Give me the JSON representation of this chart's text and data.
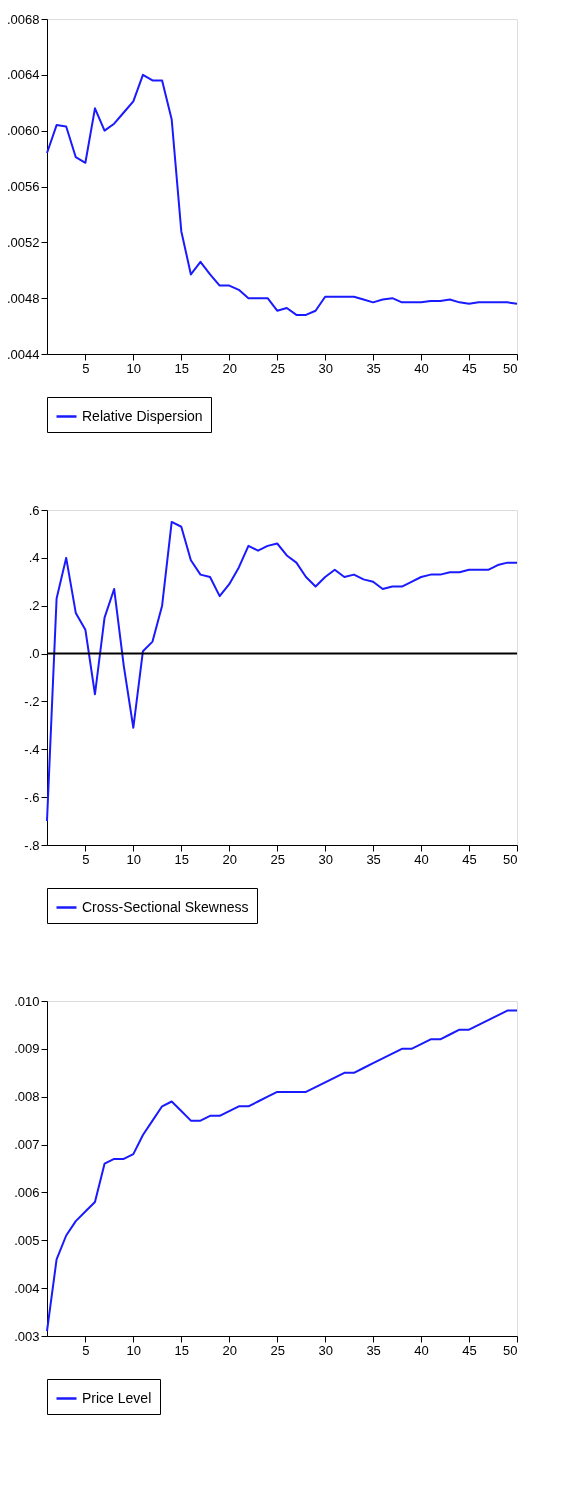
{
  "chart_data": [
    {
      "type": "line",
      "x": [
        1,
        2,
        3,
        4,
        5,
        6,
        7,
        8,
        9,
        10,
        11,
        12,
        13,
        14,
        15,
        16,
        17,
        18,
        19,
        20,
        21,
        22,
        23,
        24,
        25,
        26,
        27,
        28,
        29,
        30,
        31,
        32,
        33,
        34,
        35,
        36,
        37,
        38,
        39,
        40,
        41,
        42,
        43,
        44,
        45,
        46,
        47,
        48,
        49,
        50
      ],
      "series": [
        {
          "name": "Relative Dispersion",
          "color": "#1a1aff",
          "values": [
            0.00584,
            0.00604,
            0.00603,
            0.00581,
            0.00577,
            0.00616,
            0.006,
            0.00605,
            0.00613,
            0.00621,
            0.0064,
            0.00636,
            0.00636,
            0.00608,
            0.00528,
            0.00497,
            0.00506,
            0.00497,
            0.00489,
            0.00489,
            0.00486,
            0.0048,
            0.0048,
            0.0048,
            0.00471,
            0.00473,
            0.00468,
            0.00468,
            0.00471,
            0.00481,
            0.00481,
            0.00481,
            0.00481,
            0.00479,
            0.00477,
            0.00479,
            0.0048,
            0.00477,
            0.00477,
            0.00477,
            0.00478,
            0.00478,
            0.00479,
            0.00477,
            0.00476,
            0.00477,
            0.00477,
            0.00477,
            0.00477,
            0.00476
          ]
        }
      ],
      "xlim": [
        1,
        50
      ],
      "xticks": [
        5,
        10,
        15,
        20,
        25,
        30,
        35,
        40,
        45,
        50
      ],
      "ylim": [
        0.0044,
        0.0068
      ],
      "yticks": [
        {
          "value": 0.0044,
          "label": ".0044"
        },
        {
          "value": 0.0048,
          "label": ".0048"
        },
        {
          "value": 0.0052,
          "label": ".0052"
        },
        {
          "value": 0.0056,
          "label": ".0056"
        },
        {
          "value": 0.006,
          "label": ".0060"
        },
        {
          "value": 0.0064,
          "label": ".0064"
        },
        {
          "value": 0.0068,
          "label": ".0068"
        }
      ],
      "grid": false,
      "legend": "bottom",
      "marker": "none",
      "line_style": "solid"
    },
    {
      "type": "line",
      "x": [
        1,
        2,
        3,
        4,
        5,
        6,
        7,
        8,
        9,
        10,
        11,
        12,
        13,
        14,
        15,
        16,
        17,
        18,
        19,
        20,
        21,
        22,
        23,
        24,
        25,
        26,
        27,
        28,
        29,
        30,
        31,
        32,
        33,
        34,
        35,
        36,
        37,
        38,
        39,
        40,
        41,
        42,
        43,
        44,
        45,
        46,
        47,
        48,
        49,
        50
      ],
      "series": [
        {
          "name": "Cross-Sectional Skewness",
          "color": "#1a1aff",
          "values": [
            -0.7,
            0.23,
            0.4,
            0.17,
            0.1,
            -0.17,
            0.15,
            0.27,
            -0.05,
            -0.31,
            0.01,
            0.05,
            0.2,
            0.55,
            0.53,
            0.39,
            0.33,
            0.32,
            0.24,
            0.29,
            0.36,
            0.45,
            0.43,
            0.45,
            0.46,
            0.41,
            0.38,
            0.32,
            0.28,
            0.32,
            0.35,
            0.32,
            0.33,
            0.31,
            0.3,
            0.27,
            0.28,
            0.28,
            0.3,
            0.32,
            0.33,
            0.33,
            0.34,
            0.34,
            0.35,
            0.35,
            0.35,
            0.37,
            0.38,
            0.38
          ]
        }
      ],
      "xlim": [
        1,
        50
      ],
      "xticks": [
        5,
        10,
        15,
        20,
        25,
        30,
        35,
        40,
        45,
        50
      ],
      "ylim": [
        -0.8,
        0.6
      ],
      "yticks": [
        {
          "value": -0.8,
          "label": "-.8"
        },
        {
          "value": -0.6,
          "label": "-.6"
        },
        {
          "value": -0.4,
          "label": "-.4"
        },
        {
          "value": -0.2,
          "label": "-.2"
        },
        {
          "value": 0,
          "label": ".0"
        },
        {
          "value": 0.2,
          "label": ".2"
        },
        {
          "value": 0.4,
          "label": ".4"
        },
        {
          "value": 0.6,
          "label": ".6"
        }
      ],
      "ref_lines": [
        {
          "axis": "y",
          "value": 0,
          "color": "#000000"
        }
      ],
      "grid": false,
      "legend": "bottom",
      "marker": "none",
      "line_style": "solid"
    },
    {
      "type": "line",
      "x": [
        1,
        2,
        3,
        4,
        5,
        6,
        7,
        8,
        9,
        10,
        11,
        12,
        13,
        14,
        15,
        16,
        17,
        18,
        19,
        20,
        21,
        22,
        23,
        24,
        25,
        26,
        27,
        28,
        29,
        30,
        31,
        32,
        33,
        34,
        35,
        36,
        37,
        38,
        39,
        40,
        41,
        42,
        43,
        44,
        45,
        46,
        47,
        48,
        49,
        50
      ],
      "series": [
        {
          "name": "Price Level",
          "color": "#1a1aff",
          "values": [
            0.0031,
            0.0046,
            0.0051,
            0.0054,
            0.0056,
            0.0058,
            0.0066,
            0.0067,
            0.0067,
            0.0068,
            0.0072,
            0.0075,
            0.0078,
            0.0079,
            0.0077,
            0.0075,
            0.0075,
            0.0076,
            0.0076,
            0.0077,
            0.0078,
            0.0078,
            0.0079,
            0.008,
            0.0081,
            0.0081,
            0.0081,
            0.0081,
            0.0082,
            0.0083,
            0.0084,
            0.0085,
            0.0085,
            0.0086,
            0.0087,
            0.0088,
            0.0089,
            0.009,
            0.009,
            0.0091,
            0.0092,
            0.0092,
            0.0093,
            0.0094,
            0.0094,
            0.0095,
            0.0096,
            0.0097,
            0.0098,
            0.0098
          ]
        }
      ],
      "xlim": [
        1,
        50
      ],
      "xticks": [
        5,
        10,
        15,
        20,
        25,
        30,
        35,
        40,
        45,
        50
      ],
      "ylim": [
        0.003,
        0.01
      ],
      "yticks": [
        {
          "value": 0.003,
          "label": ".003"
        },
        {
          "value": 0.004,
          "label": ".004"
        },
        {
          "value": 0.005,
          "label": ".005"
        },
        {
          "value": 0.006,
          "label": ".006"
        },
        {
          "value": 0.007,
          "label": ".007"
        },
        {
          "value": 0.008,
          "label": ".008"
        },
        {
          "value": 0.009,
          "label": ".009"
        },
        {
          "value": 0.01,
          "label": ".010"
        }
      ],
      "grid": false,
      "legend": "bottom",
      "marker": "none",
      "line_style": "solid"
    }
  ]
}
